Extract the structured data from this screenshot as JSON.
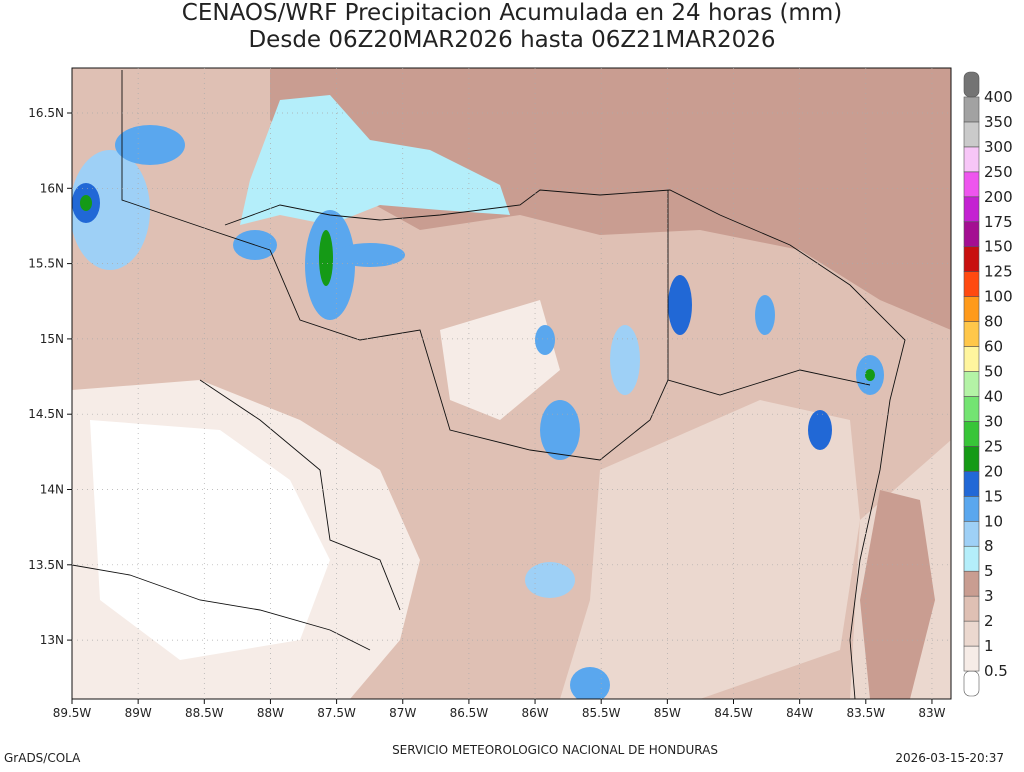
{
  "title": [
    "CENAOS/WRF Precipitacion Acumulada en 24 horas (mm)",
    "Desde 06Z20MAR2026 hasta 06Z21MAR2026"
  ],
  "map": {
    "x_labels": [
      "89.5W",
      "89W",
      "88.5W",
      "88W",
      "87.5W",
      "87W",
      "86.5W",
      "86W",
      "85.5W",
      "85W",
      "84.5W",
      "84W",
      "83.5W",
      "83W"
    ],
    "y_labels": [
      "16.5N",
      "16N",
      "15.5N",
      "15N",
      "14.5N",
      "14N",
      "13.5N",
      "13N"
    ]
  },
  "colorbar": {
    "levels": [
      0.5,
      1,
      2,
      3,
      5,
      8,
      10,
      15,
      20,
      25,
      30,
      40,
      50,
      60,
      80,
      100,
      125,
      150,
      175,
      200,
      250,
      300,
      350,
      400
    ],
    "colors": [
      "#ffffff",
      "#f6ece7",
      "#ebd8cf",
      "#dfc0b4",
      "#c99d91",
      "#b4eefa",
      "#9ed0f6",
      "#5aa7ee",
      "#2168d6",
      "#159a16",
      "#38c538",
      "#74e472",
      "#b4f3a6",
      "#fff59e",
      "#ffc74a",
      "#ff9a1a",
      "#ff4a10",
      "#c8100f",
      "#a40e92",
      "#c421d2",
      "#ee55ee",
      "#f7c6f7",
      "#cacaca",
      "#a2a2a2",
      "#747474"
    ]
  },
  "footer": {
    "left": "GrADS/COLA",
    "center": "SERVICIO METEOROLOGICO NACIONAL DE HONDURAS",
    "right": "2026-03-15-20:37"
  }
}
